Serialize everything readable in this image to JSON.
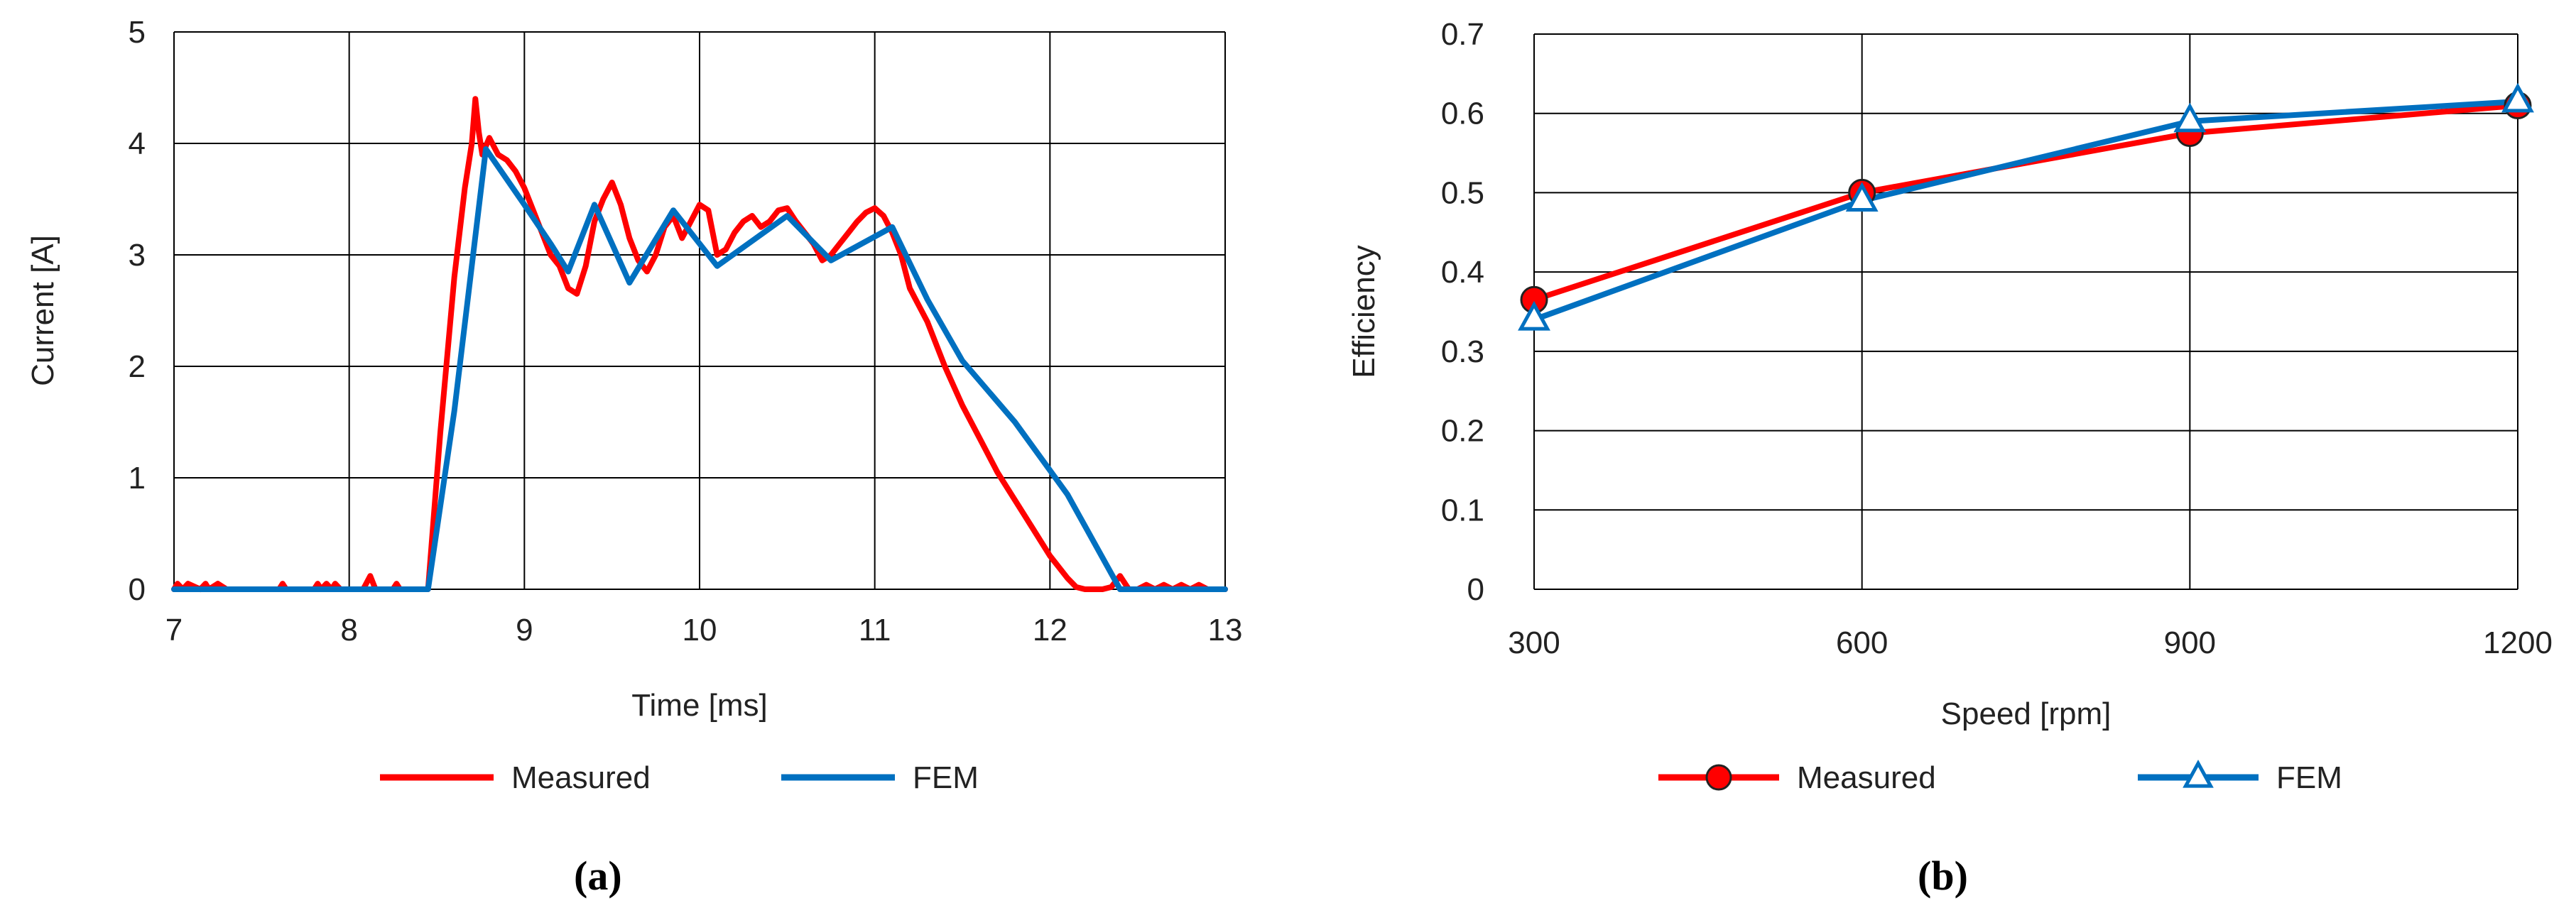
{
  "figure": {
    "panel_a_label": "(a)",
    "panel_b_label": "(b)"
  },
  "chart_data": [
    {
      "type": "line",
      "title": "",
      "xlabel": "Time [ms]",
      "ylabel": "Current [A]",
      "xlim": [
        7,
        13
      ],
      "ylim": [
        0,
        5
      ],
      "x_ticks": [
        "7",
        "8",
        "9",
        "10",
        "11",
        "12",
        "13"
      ],
      "y_ticks": [
        "0",
        "1",
        "2",
        "3",
        "4",
        "5"
      ],
      "grid": true,
      "legend_position": "bottom",
      "series": [
        {
          "name": "Measured",
          "color": "#ff0000",
          "x": [
            7.0,
            7.02,
            7.05,
            7.08,
            7.15,
            7.18,
            7.2,
            7.25,
            7.3,
            7.33,
            7.6,
            7.62,
            7.64,
            7.8,
            7.82,
            7.84,
            7.87,
            7.9,
            7.92,
            7.95,
            8.0,
            8.08,
            8.12,
            8.15,
            8.25,
            8.27,
            8.29,
            8.45,
            8.52,
            8.6,
            8.66,
            8.7,
            8.72,
            8.74,
            8.76,
            8.8,
            8.85,
            8.9,
            8.95,
            9.0,
            9.05,
            9.1,
            9.15,
            9.2,
            9.25,
            9.3,
            9.35,
            9.4,
            9.45,
            9.5,
            9.55,
            9.6,
            9.65,
            9.7,
            9.75,
            9.8,
            9.85,
            9.9,
            9.95,
            10.0,
            10.05,
            10.1,
            10.15,
            10.2,
            10.25,
            10.3,
            10.35,
            10.4,
            10.45,
            10.5,
            10.55,
            10.6,
            10.65,
            10.7,
            10.75,
            10.8,
            10.85,
            10.9,
            10.95,
            11.0,
            11.05,
            11.1,
            11.15,
            11.2,
            11.3,
            11.4,
            11.5,
            11.6,
            11.7,
            11.8,
            11.9,
            12.0,
            12.1,
            12.15,
            12.2,
            12.25,
            12.3,
            12.35,
            12.4,
            12.45,
            12.5,
            12.55,
            12.6,
            12.65,
            12.7,
            12.75,
            12.8,
            12.85,
            12.9,
            13.0
          ],
          "y": [
            0,
            0.05,
            0,
            0.05,
            0,
            0.05,
            0,
            0.05,
            0,
            0,
            0,
            0.05,
            0,
            0,
            0.05,
            0,
            0.05,
            0,
            0.05,
            0,
            0,
            0,
            0.12,
            0,
            0,
            0.05,
            0,
            0,
            1.4,
            2.8,
            3.6,
            4.0,
            4.4,
            4.1,
            3.9,
            4.05,
            3.9,
            3.85,
            3.75,
            3.6,
            3.4,
            3.2,
            3.0,
            2.9,
            2.7,
            2.65,
            2.9,
            3.3,
            3.5,
            3.65,
            3.45,
            3.15,
            2.95,
            2.85,
            3.0,
            3.25,
            3.35,
            3.15,
            3.3,
            3.45,
            3.4,
            3.0,
            3.05,
            3.2,
            3.3,
            3.35,
            3.25,
            3.3,
            3.4,
            3.42,
            3.3,
            3.2,
            3.1,
            2.95,
            3.0,
            3.1,
            3.2,
            3.3,
            3.38,
            3.42,
            3.35,
            3.2,
            3.0,
            2.7,
            2.4,
            2.0,
            1.65,
            1.35,
            1.05,
            0.8,
            0.55,
            0.3,
            0.1,
            0.02,
            0,
            0,
            0,
            0.02,
            0.12,
            0,
            0,
            0.04,
            0,
            0.04,
            0,
            0.04,
            0,
            0.04,
            0,
            0
          ]
        },
        {
          "name": "FEM",
          "color": "#0070c0",
          "x": [
            7.0,
            8.45,
            8.6,
            8.78,
            9.0,
            9.15,
            9.25,
            9.4,
            9.6,
            9.85,
            10.1,
            10.5,
            10.75,
            11.1,
            11.3,
            11.5,
            11.8,
            12.1,
            12.4,
            13.0
          ],
          "y": [
            0,
            0,
            1.6,
            3.95,
            3.45,
            3.1,
            2.85,
            3.45,
            2.75,
            3.4,
            2.9,
            3.35,
            2.95,
            3.25,
            2.6,
            2.05,
            1.5,
            0.85,
            0,
            0
          ]
        }
      ]
    },
    {
      "type": "line",
      "title": "",
      "xlabel": "Speed  [rpm]",
      "ylabel": "Efficiency",
      "categories": [
        "300",
        "600",
        "900",
        "1200"
      ],
      "ylim": [
        0,
        0.7
      ],
      "y_ticks": [
        "0",
        "0.1",
        "0.2",
        "0.3",
        "0.4",
        "0.5",
        "0.6",
        "0.7"
      ],
      "grid": true,
      "legend_position": "bottom",
      "series": [
        {
          "name": "Measured",
          "color": "#ff0000",
          "marker": "circle",
          "values": [
            0.365,
            0.5,
            0.575,
            0.61
          ]
        },
        {
          "name": "FEM",
          "color": "#0070c0",
          "marker": "triangle",
          "values": [
            0.34,
            0.49,
            0.59,
            0.615
          ]
        }
      ]
    }
  ]
}
